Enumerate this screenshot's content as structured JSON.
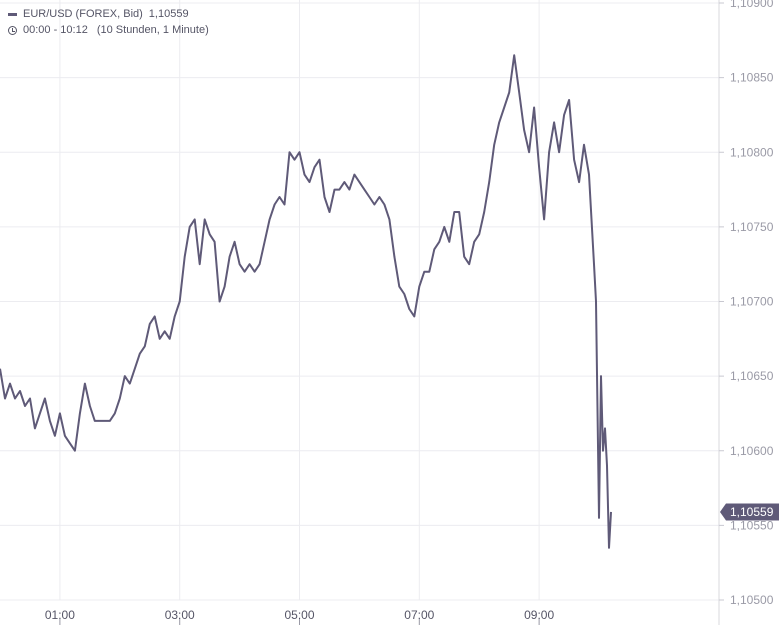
{
  "legend": {
    "series_label": "EUR/USD (FOREX, Bid)",
    "series_value": "1,10559",
    "time_range": "00:00 - 10:12",
    "interval": "(10 Stunden, 1 Minute)",
    "line_color": "#5f5a78",
    "clock_icon": "clock-icon"
  },
  "chart_data": {
    "type": "line",
    "title": "",
    "xlabel": "",
    "ylabel": "",
    "x_ticks": [
      "01:00",
      "03:00",
      "05:00",
      "07:00",
      "09:00"
    ],
    "x_range": [
      "00:00",
      "10:12"
    ],
    "y_ticks": [
      "1,10500",
      "1,10550",
      "1,10600",
      "1,10650",
      "1,10700",
      "1,10750",
      "1,10800",
      "1,10850",
      "1,10900"
    ],
    "ylim": [
      1.105,
      1.109
    ],
    "grid": true,
    "current_value_label": "1,10559",
    "current_value": 1.10559,
    "series": [
      {
        "color": "#5f5a78",
        "points": [
          [
            "00:00",
            1.10655
          ],
          [
            "00:05",
            1.10635
          ],
          [
            "00:10",
            1.10645
          ],
          [
            "00:15",
            1.10635
          ],
          [
            "00:20",
            1.1064
          ],
          [
            "00:25",
            1.1063
          ],
          [
            "00:30",
            1.10635
          ],
          [
            "00:35",
            1.10615
          ],
          [
            "00:40",
            1.10625
          ],
          [
            "00:45",
            1.10635
          ],
          [
            "00:50",
            1.1062
          ],
          [
            "00:55",
            1.1061
          ],
          [
            "01:00",
            1.10625
          ],
          [
            "01:05",
            1.1061
          ],
          [
            "01:10",
            1.10605
          ],
          [
            "01:15",
            1.106
          ],
          [
            "01:20",
            1.10625
          ],
          [
            "01:25",
            1.10645
          ],
          [
            "01:30",
            1.1063
          ],
          [
            "01:35",
            1.1062
          ],
          [
            "01:40",
            1.1062
          ],
          [
            "01:45",
            1.1062
          ],
          [
            "01:50",
            1.1062
          ],
          [
            "01:55",
            1.10625
          ],
          [
            "02:00",
            1.10635
          ],
          [
            "02:05",
            1.1065
          ],
          [
            "02:10",
            1.10645
          ],
          [
            "02:15",
            1.10655
          ],
          [
            "02:20",
            1.10665
          ],
          [
            "02:25",
            1.1067
          ],
          [
            "02:30",
            1.10685
          ],
          [
            "02:35",
            1.1069
          ],
          [
            "02:40",
            1.10675
          ],
          [
            "02:45",
            1.1068
          ],
          [
            "02:50",
            1.10675
          ],
          [
            "02:55",
            1.1069
          ],
          [
            "03:00",
            1.107
          ],
          [
            "03:05",
            1.1073
          ],
          [
            "03:10",
            1.1075
          ],
          [
            "03:15",
            1.10755
          ],
          [
            "03:20",
            1.10725
          ],
          [
            "03:25",
            1.10755
          ],
          [
            "03:30",
            1.10745
          ],
          [
            "03:35",
            1.1074
          ],
          [
            "03:40",
            1.107
          ],
          [
            "03:45",
            1.1071
          ],
          [
            "03:50",
            1.1073
          ],
          [
            "03:55",
            1.1074
          ],
          [
            "04:00",
            1.10725
          ],
          [
            "04:05",
            1.1072
          ],
          [
            "04:10",
            1.10725
          ],
          [
            "04:15",
            1.1072
          ],
          [
            "04:20",
            1.10725
          ],
          [
            "04:25",
            1.1074
          ],
          [
            "04:30",
            1.10755
          ],
          [
            "04:35",
            1.10765
          ],
          [
            "04:40",
            1.1077
          ],
          [
            "04:45",
            1.10765
          ],
          [
            "04:50",
            1.108
          ],
          [
            "04:55",
            1.10795
          ],
          [
            "05:00",
            1.108
          ],
          [
            "05:05",
            1.10785
          ],
          [
            "05:10",
            1.1078
          ],
          [
            "05:15",
            1.1079
          ],
          [
            "05:20",
            1.10795
          ],
          [
            "05:25",
            1.1077
          ],
          [
            "05:30",
            1.1076
          ],
          [
            "05:35",
            1.10775
          ],
          [
            "05:40",
            1.10775
          ],
          [
            "05:45",
            1.1078
          ],
          [
            "05:50",
            1.10775
          ],
          [
            "05:55",
            1.10785
          ],
          [
            "06:00",
            1.1078
          ],
          [
            "06:05",
            1.10775
          ],
          [
            "06:10",
            1.1077
          ],
          [
            "06:15",
            1.10765
          ],
          [
            "06:20",
            1.1077
          ],
          [
            "06:25",
            1.10765
          ],
          [
            "06:30",
            1.10755
          ],
          [
            "06:35",
            1.1073
          ],
          [
            "06:40",
            1.1071
          ],
          [
            "06:45",
            1.10705
          ],
          [
            "06:50",
            1.10695
          ],
          [
            "06:55",
            1.1069
          ],
          [
            "07:00",
            1.1071
          ],
          [
            "07:05",
            1.1072
          ],
          [
            "07:10",
            1.1072
          ],
          [
            "07:15",
            1.10735
          ],
          [
            "07:20",
            1.1074
          ],
          [
            "07:25",
            1.1075
          ],
          [
            "07:30",
            1.1074
          ],
          [
            "07:35",
            1.1076
          ],
          [
            "07:40",
            1.1076
          ],
          [
            "07:45",
            1.1073
          ],
          [
            "07:50",
            1.10725
          ],
          [
            "07:55",
            1.1074
          ],
          [
            "08:00",
            1.10745
          ],
          [
            "08:05",
            1.1076
          ],
          [
            "08:10",
            1.1078
          ],
          [
            "08:15",
            1.10805
          ],
          [
            "08:20",
            1.1082
          ],
          [
            "08:25",
            1.1083
          ],
          [
            "08:30",
            1.1084
          ],
          [
            "08:35",
            1.10865
          ],
          [
            "08:40",
            1.1084
          ],
          [
            "08:45",
            1.10815
          ],
          [
            "08:50",
            1.108
          ],
          [
            "08:55",
            1.1083
          ],
          [
            "09:00",
            1.1079
          ],
          [
            "09:05",
            1.10755
          ],
          [
            "09:10",
            1.108
          ],
          [
            "09:15",
            1.1082
          ],
          [
            "09:20",
            1.108
          ],
          [
            "09:25",
            1.10825
          ],
          [
            "09:30",
            1.10835
          ],
          [
            "09:35",
            1.10795
          ],
          [
            "09:40",
            1.1078
          ],
          [
            "09:45",
            1.10805
          ],
          [
            "09:50",
            1.10785
          ],
          [
            "09:55",
            1.10725
          ],
          [
            "09:57",
            1.107
          ],
          [
            "10:00",
            1.10555
          ],
          [
            "10:02",
            1.1065
          ],
          [
            "10:04",
            1.106
          ],
          [
            "10:06",
            1.10615
          ],
          [
            "10:08",
            1.1059
          ],
          [
            "10:10",
            1.10535
          ],
          [
            "10:12",
            1.10559
          ]
        ]
      }
    ]
  }
}
